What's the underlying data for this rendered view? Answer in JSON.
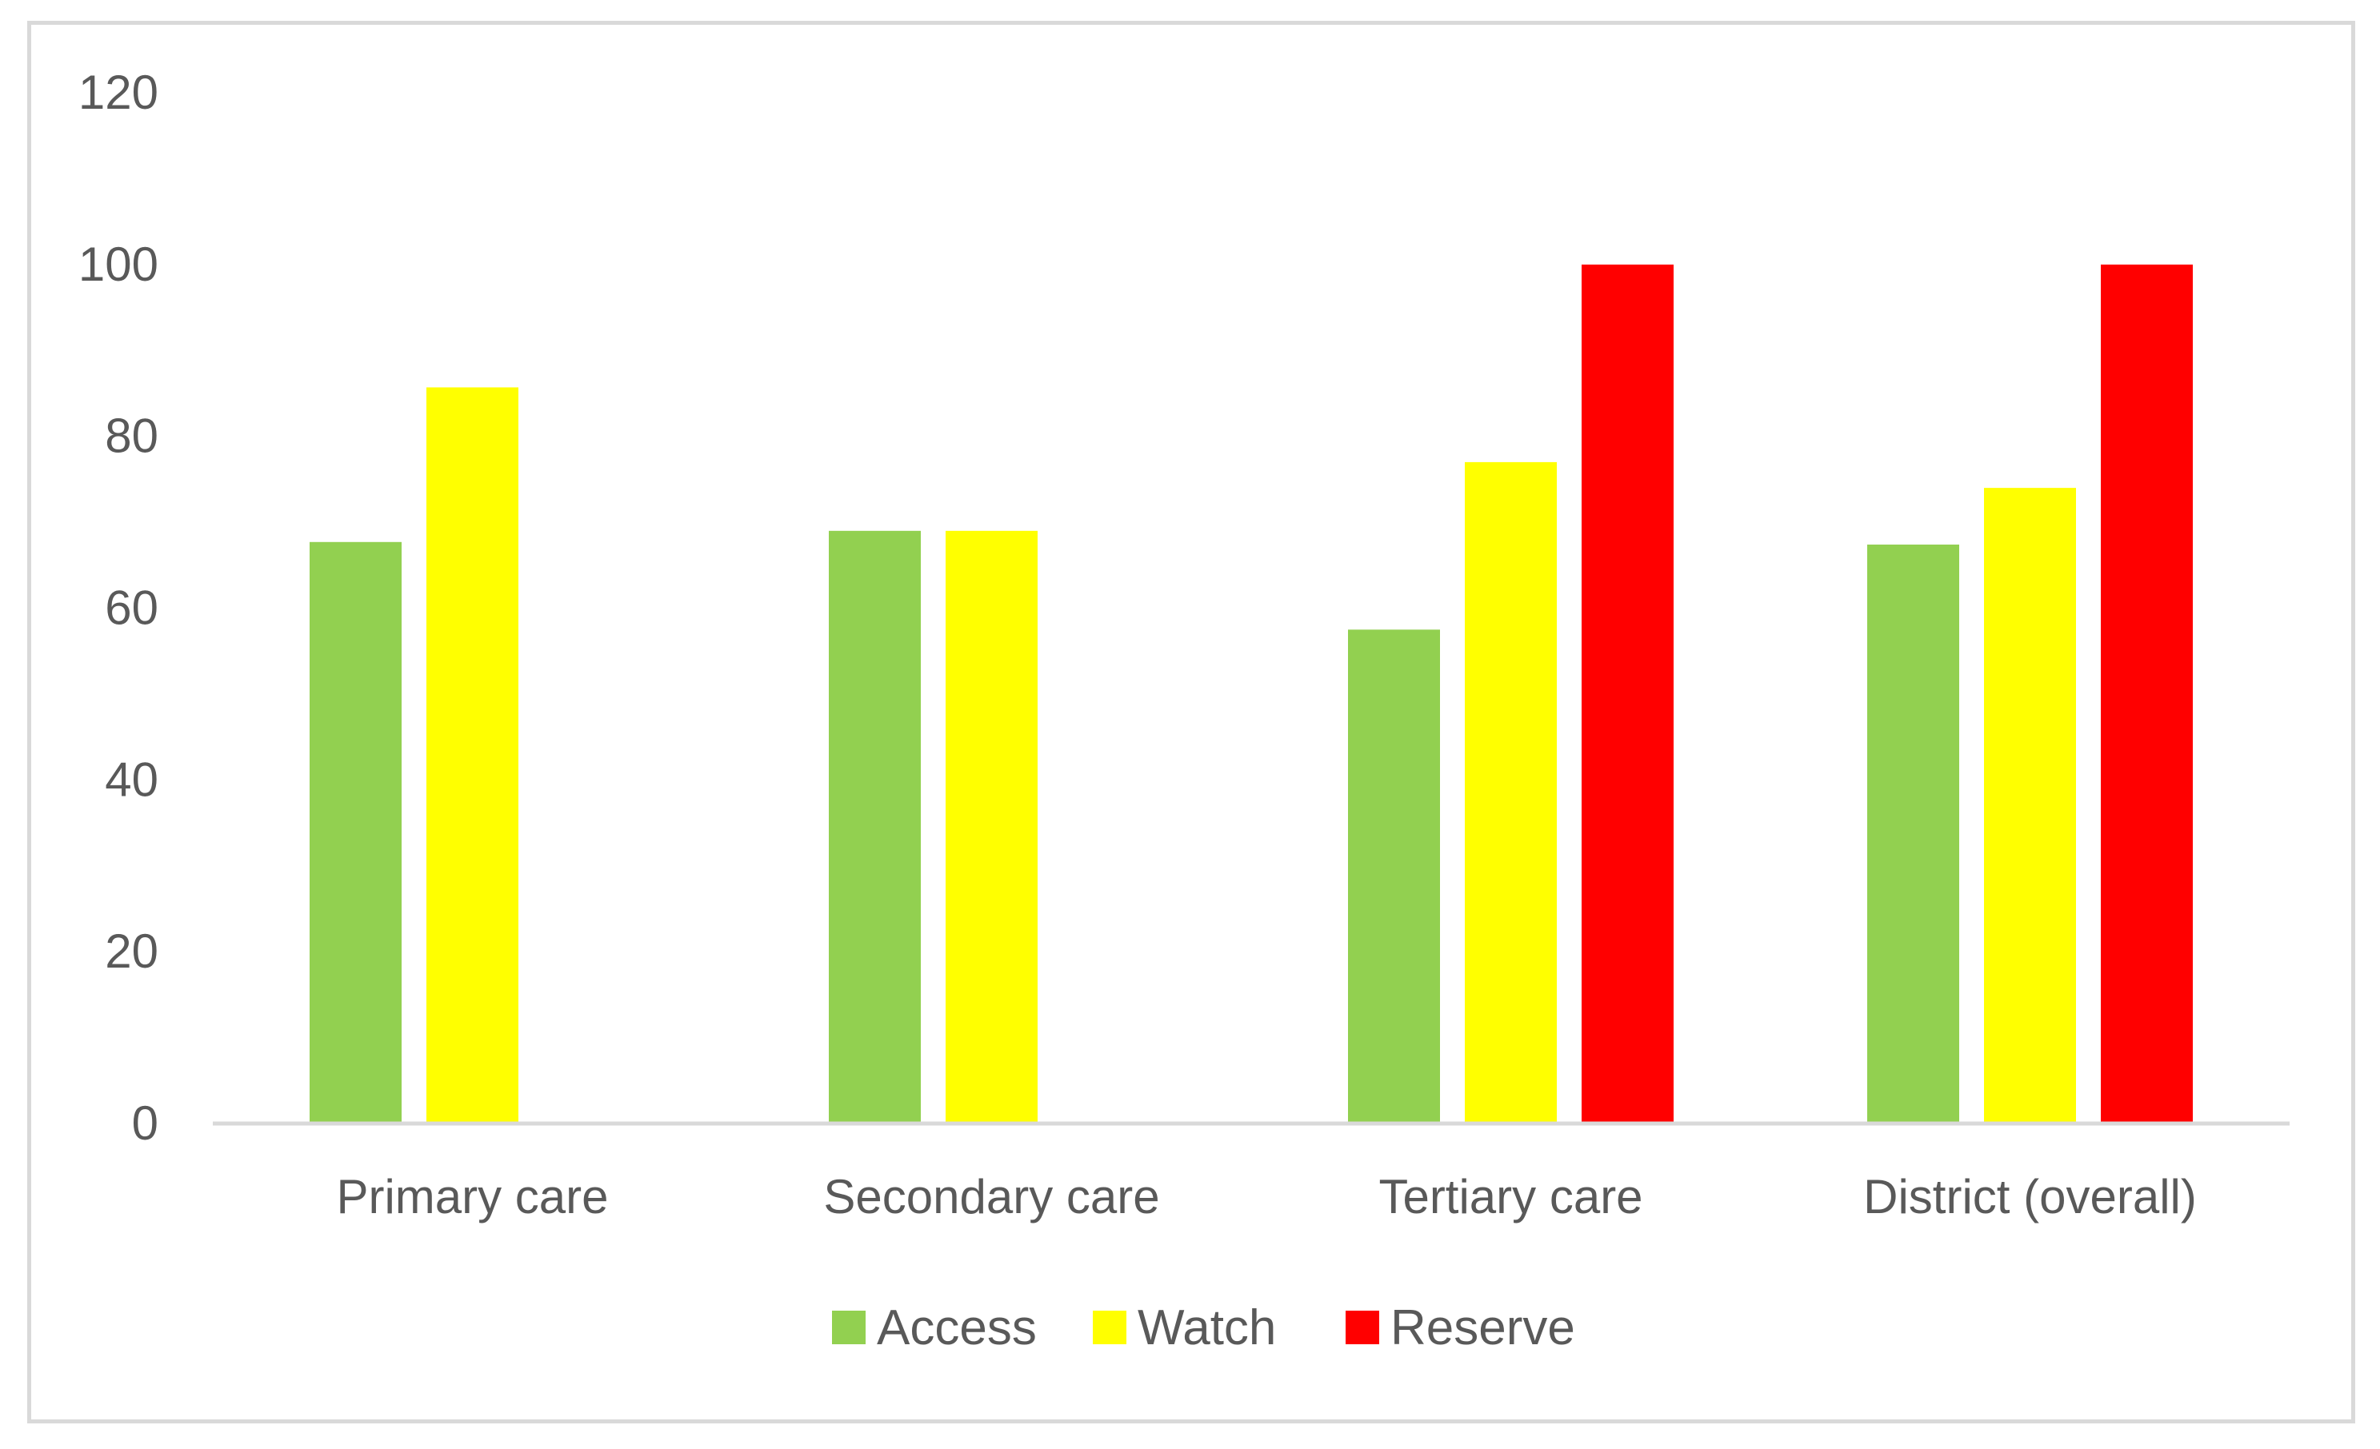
{
  "chart_data": {
    "type": "bar",
    "title": "",
    "xlabel": "",
    "ylabel": "",
    "categories": [
      "Primary care",
      "Secondary care",
      "Tertiary care",
      "District (overall)"
    ],
    "series": [
      {
        "name": "Access",
        "color": "#92d050",
        "values": [
          67.7,
          69.0,
          57.5,
          67.4
        ]
      },
      {
        "name": "Watch",
        "color": "#ffff00",
        "values": [
          85.7,
          69.0,
          77.0,
          74.0
        ]
      },
      {
        "name": "Reserve",
        "color": "#ff0000",
        "values": [
          null,
          null,
          100,
          100
        ]
      }
    ],
    "ylim": [
      0,
      120
    ],
    "yticks": [
      0,
      20,
      40,
      60,
      80,
      100,
      120
    ],
    "grid": false,
    "legend": "bottom-center",
    "axis_color": "#d9d9d9",
    "text_color": "#595959"
  }
}
